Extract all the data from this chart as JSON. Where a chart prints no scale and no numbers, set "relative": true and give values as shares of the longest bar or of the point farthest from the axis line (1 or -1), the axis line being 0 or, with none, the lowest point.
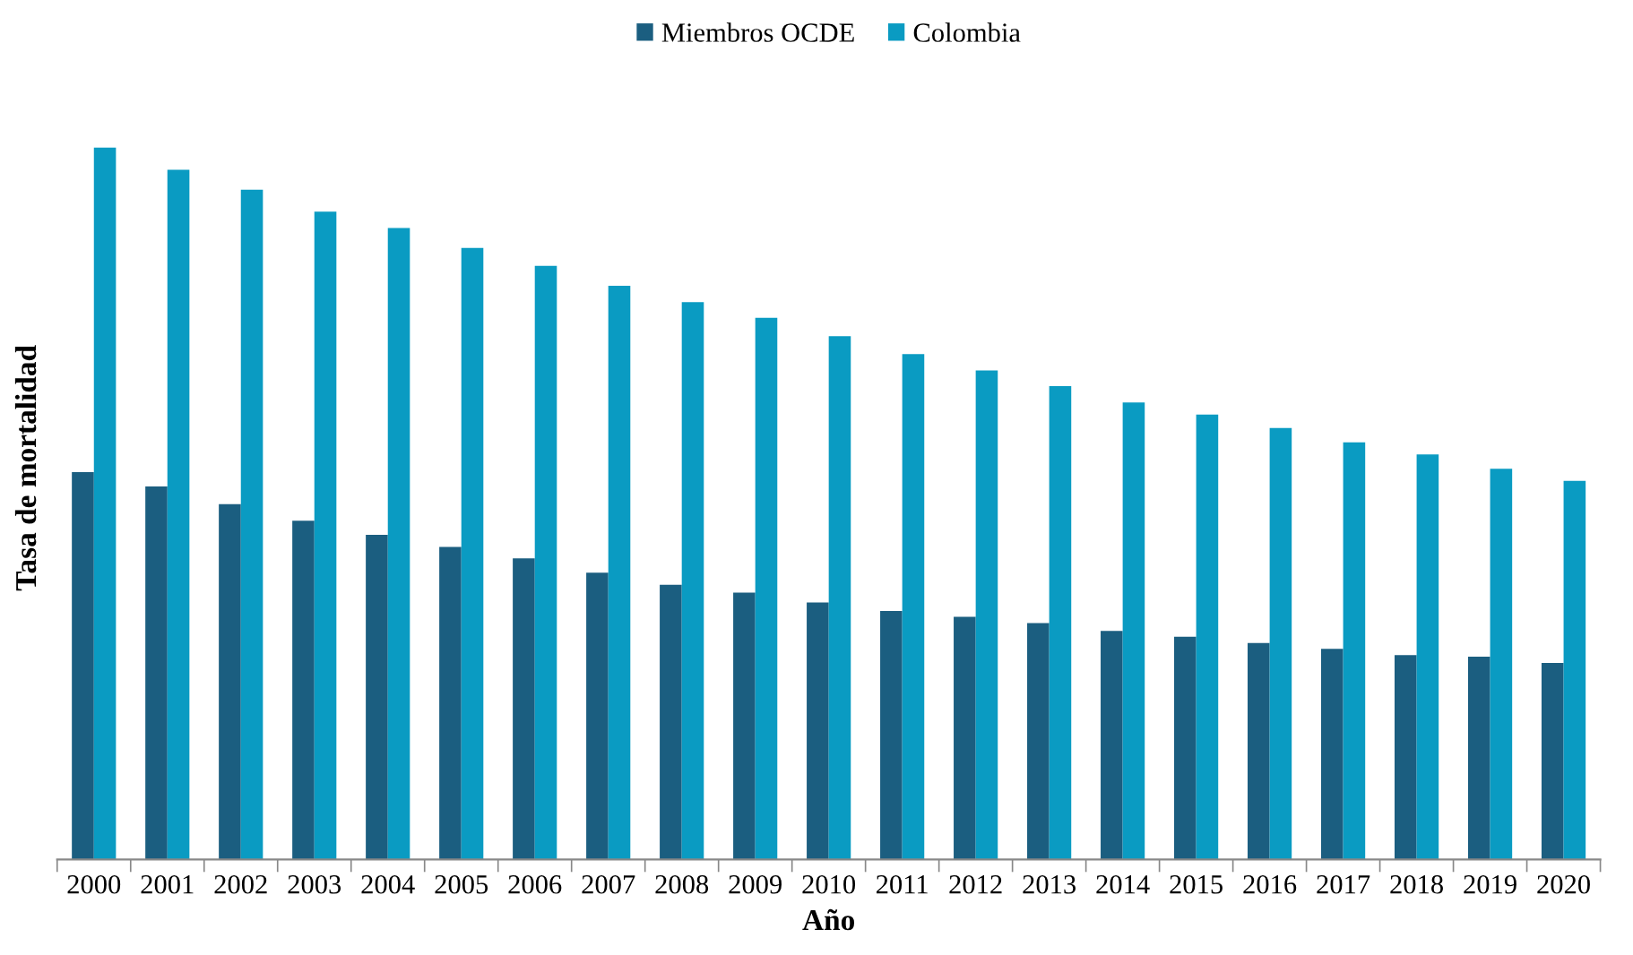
{
  "chart_data": {
    "type": "bar",
    "relative": true,
    "xlabel": "Año",
    "ylabel": "Tasa de mortalidad",
    "legend": "top",
    "grid": false,
    "categories": [
      "2000",
      "2001",
      "2002",
      "2003",
      "2004",
      "2005",
      "2006",
      "2007",
      "2008",
      "2009",
      "2010",
      "2011",
      "2012",
      "2013",
      "2014",
      "2015",
      "2016",
      "2017",
      "2018",
      "2019",
      "2020"
    ],
    "series": [
      {
        "name": "Miembros OCDE",
        "color": "#1b5e80",
        "values": [
          0.544,
          0.524,
          0.499,
          0.476,
          0.456,
          0.439,
          0.423,
          0.403,
          0.386,
          0.375,
          0.361,
          0.349,
          0.341,
          0.332,
          0.321,
          0.313,
          0.304,
          0.296,
          0.287,
          0.285,
          0.276
        ]
      },
      {
        "name": "Colombia",
        "color": "#0a9bc2",
        "values": [
          1,
          0.969,
          0.941,
          0.91,
          0.887,
          0.859,
          0.834,
          0.806,
          0.783,
          0.761,
          0.735,
          0.71,
          0.687,
          0.665,
          0.642,
          0.625,
          0.606,
          0.586,
          0.569,
          0.549,
          0.532
        ]
      }
    ]
  }
}
